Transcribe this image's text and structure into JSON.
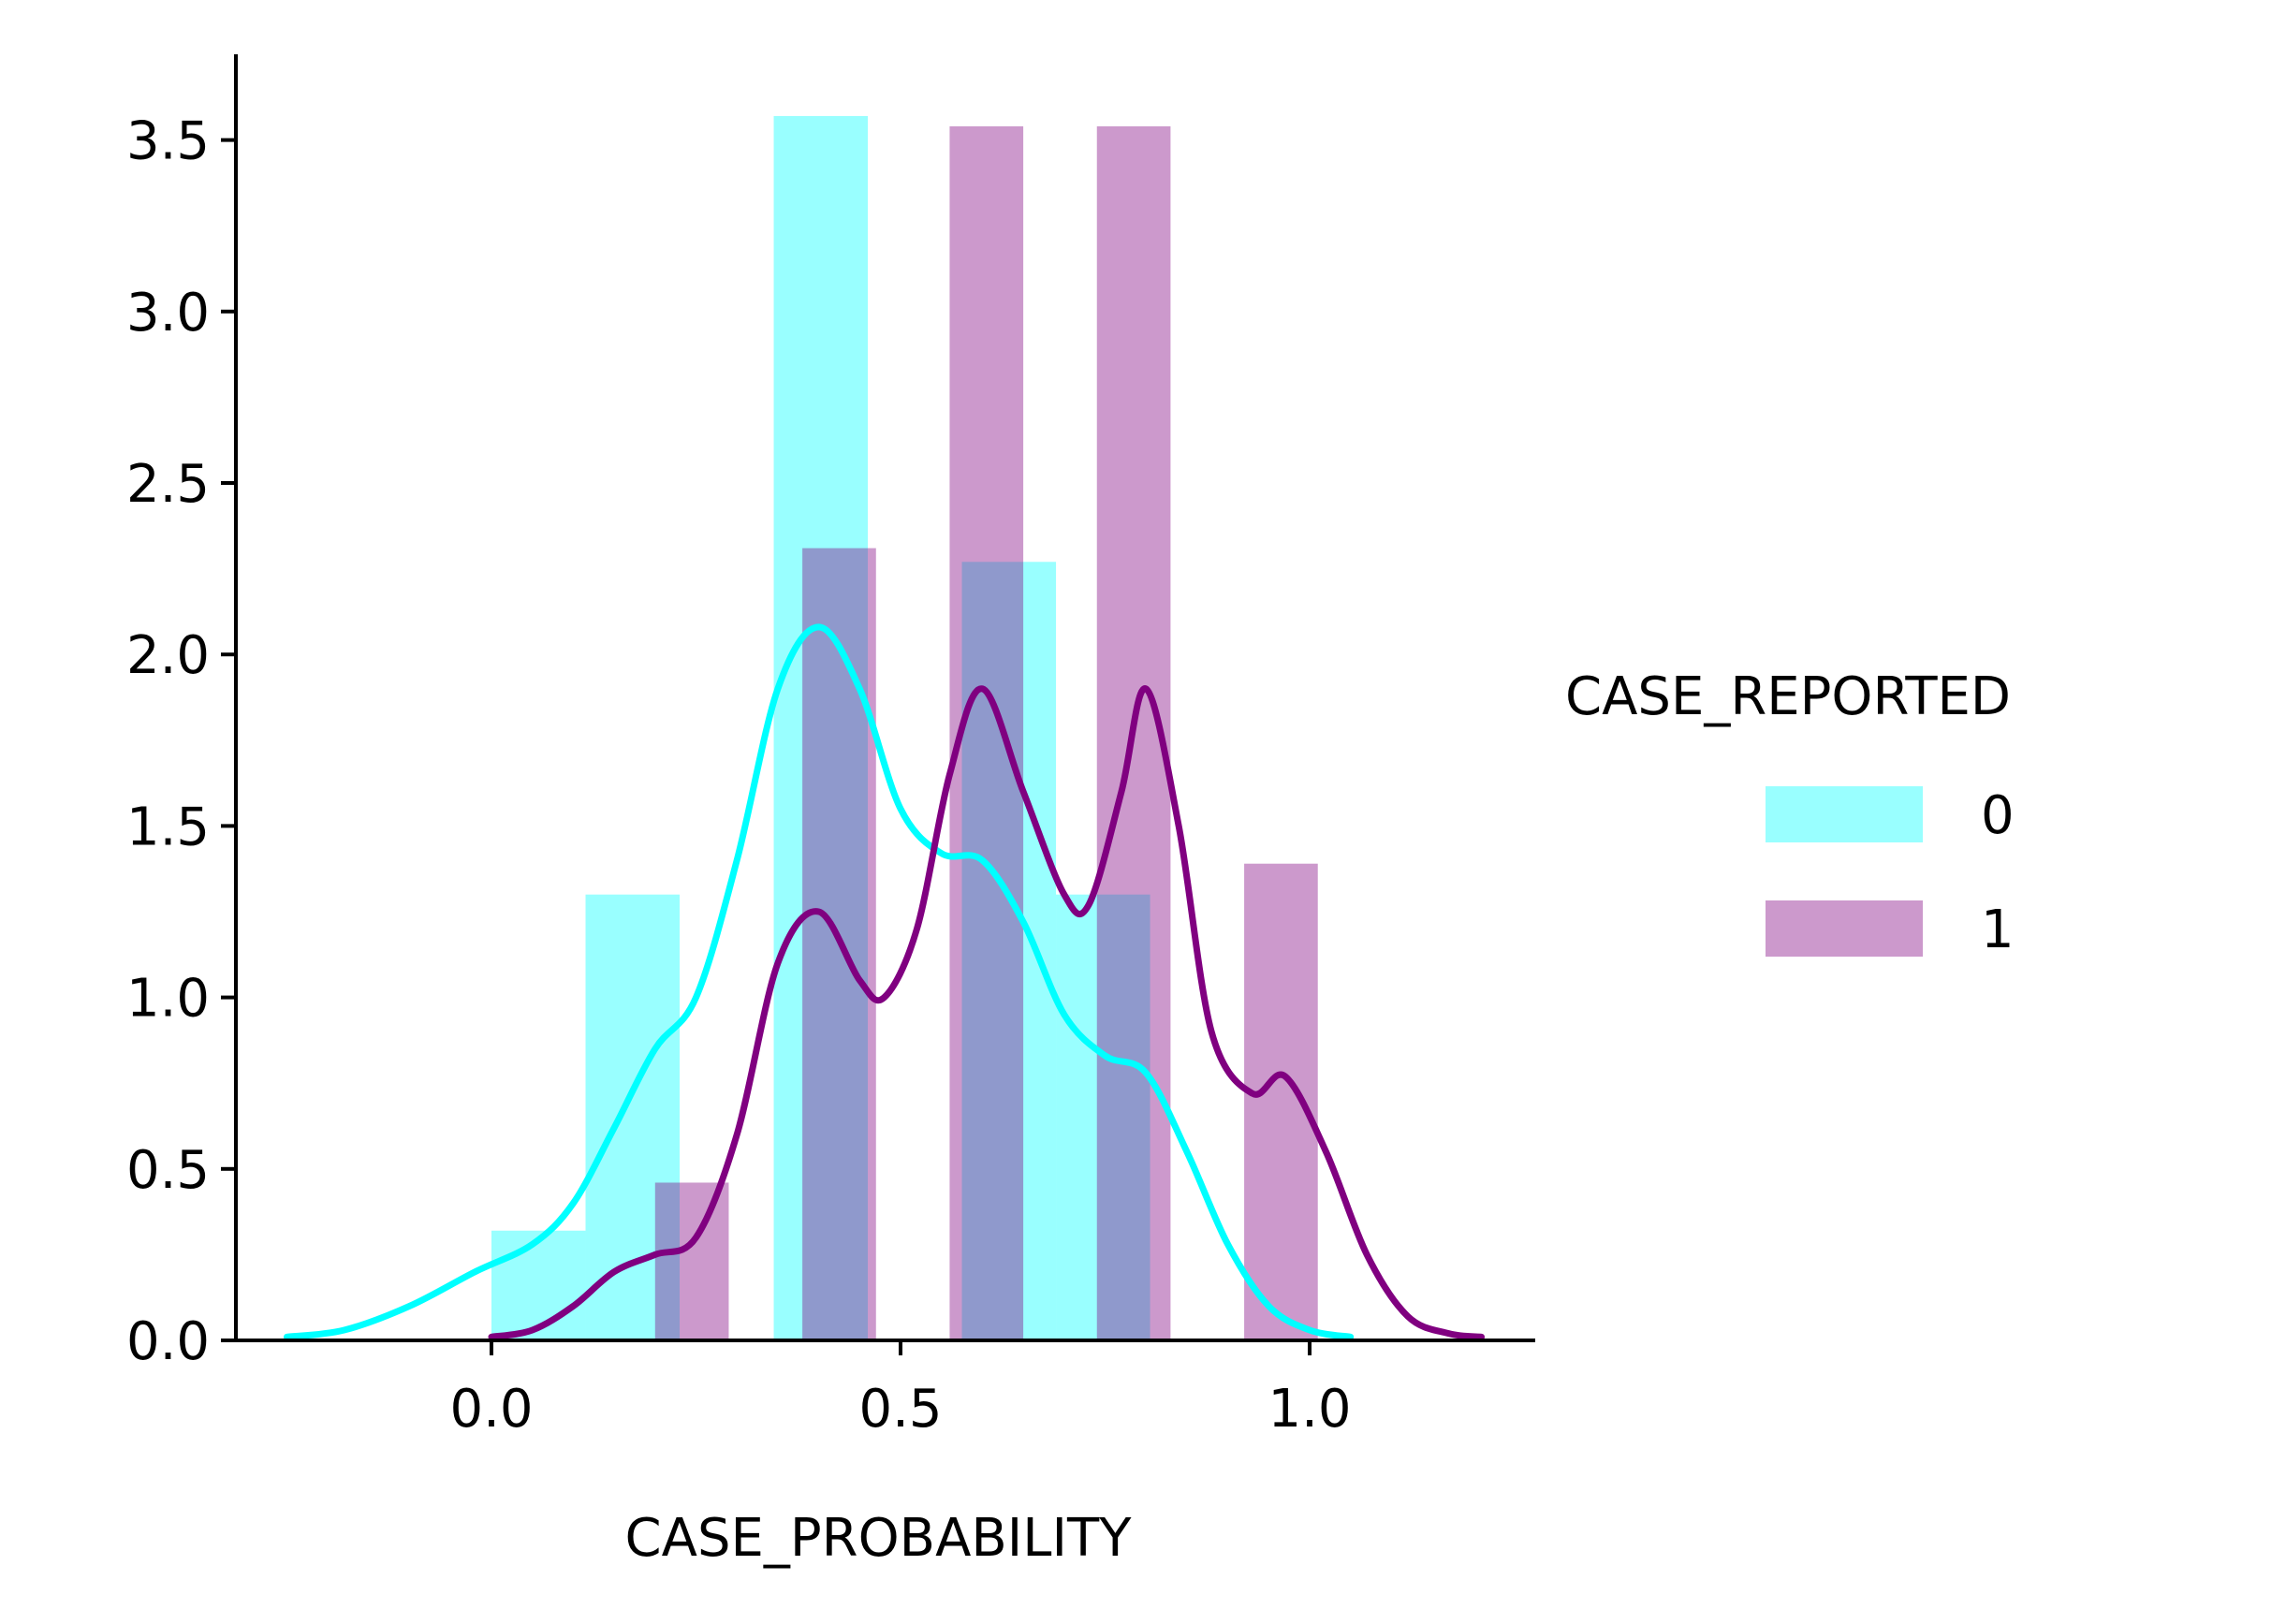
{
  "chart_data": {
    "type": "histogram+kde",
    "title": "",
    "xlabel": "CASE_PROBABILITY",
    "ylabel": "",
    "xlim": [
      -0.25,
      1.2
    ],
    "ylim": [
      0,
      3.75
    ],
    "xticks": [
      0.0,
      0.5,
      1.0
    ],
    "xtick_labels": [
      "0.0",
      "0.5",
      "1.0"
    ],
    "yticks": [
      0.0,
      0.5,
      1.0,
      1.5,
      2.0,
      2.5,
      3.0,
      3.5
    ],
    "ytick_labels": [
      "0.0",
      "0.5",
      "1.0",
      "1.5",
      "2.0",
      "2.5",
      "3.0",
      "3.5"
    ],
    "grid": false,
    "legend": {
      "title": "CASE_REPORTED",
      "placement": "center-right",
      "entries": [
        "0",
        "1"
      ]
    },
    "series": [
      {
        "name": "0",
        "color": "#00ffff",
        "bars": [
          {
            "x0": 0.0,
            "x1": 0.115,
            "value": 0.32
          },
          {
            "x0": 0.115,
            "x1": 0.23,
            "value": 1.3
          },
          {
            "x0": 0.345,
            "x1": 0.46,
            "value": 3.57
          },
          {
            "x0": 0.575,
            "x1": 0.69,
            "value": 2.27
          },
          {
            "x0": 0.69,
            "x1": 0.805,
            "value": 1.3
          }
        ],
        "kde": [
          [
            -0.25,
            0.01
          ],
          [
            -0.18,
            0.03
          ],
          [
            -0.1,
            0.1
          ],
          [
            -0.02,
            0.2
          ],
          [
            0.05,
            0.28
          ],
          [
            0.1,
            0.4
          ],
          [
            0.15,
            0.62
          ],
          [
            0.2,
            0.85
          ],
          [
            0.25,
            1.0
          ],
          [
            0.3,
            1.4
          ],
          [
            0.35,
            1.9
          ],
          [
            0.4,
            2.08
          ],
          [
            0.45,
            1.9
          ],
          [
            0.5,
            1.55
          ],
          [
            0.55,
            1.42
          ],
          [
            0.6,
            1.4
          ],
          [
            0.65,
            1.22
          ],
          [
            0.7,
            0.95
          ],
          [
            0.75,
            0.83
          ],
          [
            0.8,
            0.78
          ],
          [
            0.85,
            0.55
          ],
          [
            0.9,
            0.28
          ],
          [
            0.95,
            0.1
          ],
          [
            1.0,
            0.03
          ],
          [
            1.05,
            0.01
          ]
        ]
      },
      {
        "name": "1",
        "color": "#800080",
        "bars": [
          {
            "x0": 0.2,
            "x1": 0.29,
            "value": 0.46
          },
          {
            "x0": 0.38,
            "x1": 0.47,
            "value": 2.31
          },
          {
            "x0": 0.56,
            "x1": 0.65,
            "value": 3.54
          },
          {
            "x0": 0.74,
            "x1": 0.83,
            "value": 3.54
          },
          {
            "x0": 0.92,
            "x1": 1.01,
            "value": 1.39
          }
        ],
        "kde": [
          [
            0.0,
            0.01
          ],
          [
            0.05,
            0.03
          ],
          [
            0.1,
            0.1
          ],
          [
            0.15,
            0.2
          ],
          [
            0.2,
            0.25
          ],
          [
            0.25,
            0.3
          ],
          [
            0.3,
            0.6
          ],
          [
            0.35,
            1.1
          ],
          [
            0.4,
            1.25
          ],
          [
            0.45,
            1.05
          ],
          [
            0.48,
            1.0
          ],
          [
            0.52,
            1.2
          ],
          [
            0.56,
            1.65
          ],
          [
            0.6,
            1.9
          ],
          [
            0.65,
            1.6
          ],
          [
            0.7,
            1.3
          ],
          [
            0.73,
            1.27
          ],
          [
            0.77,
            1.6
          ],
          [
            0.8,
            1.9
          ],
          [
            0.84,
            1.5
          ],
          [
            0.88,
            0.9
          ],
          [
            0.93,
            0.72
          ],
          [
            0.97,
            0.77
          ],
          [
            1.02,
            0.55
          ],
          [
            1.07,
            0.25
          ],
          [
            1.12,
            0.07
          ],
          [
            1.17,
            0.02
          ],
          [
            1.21,
            0.01
          ]
        ]
      }
    ]
  }
}
